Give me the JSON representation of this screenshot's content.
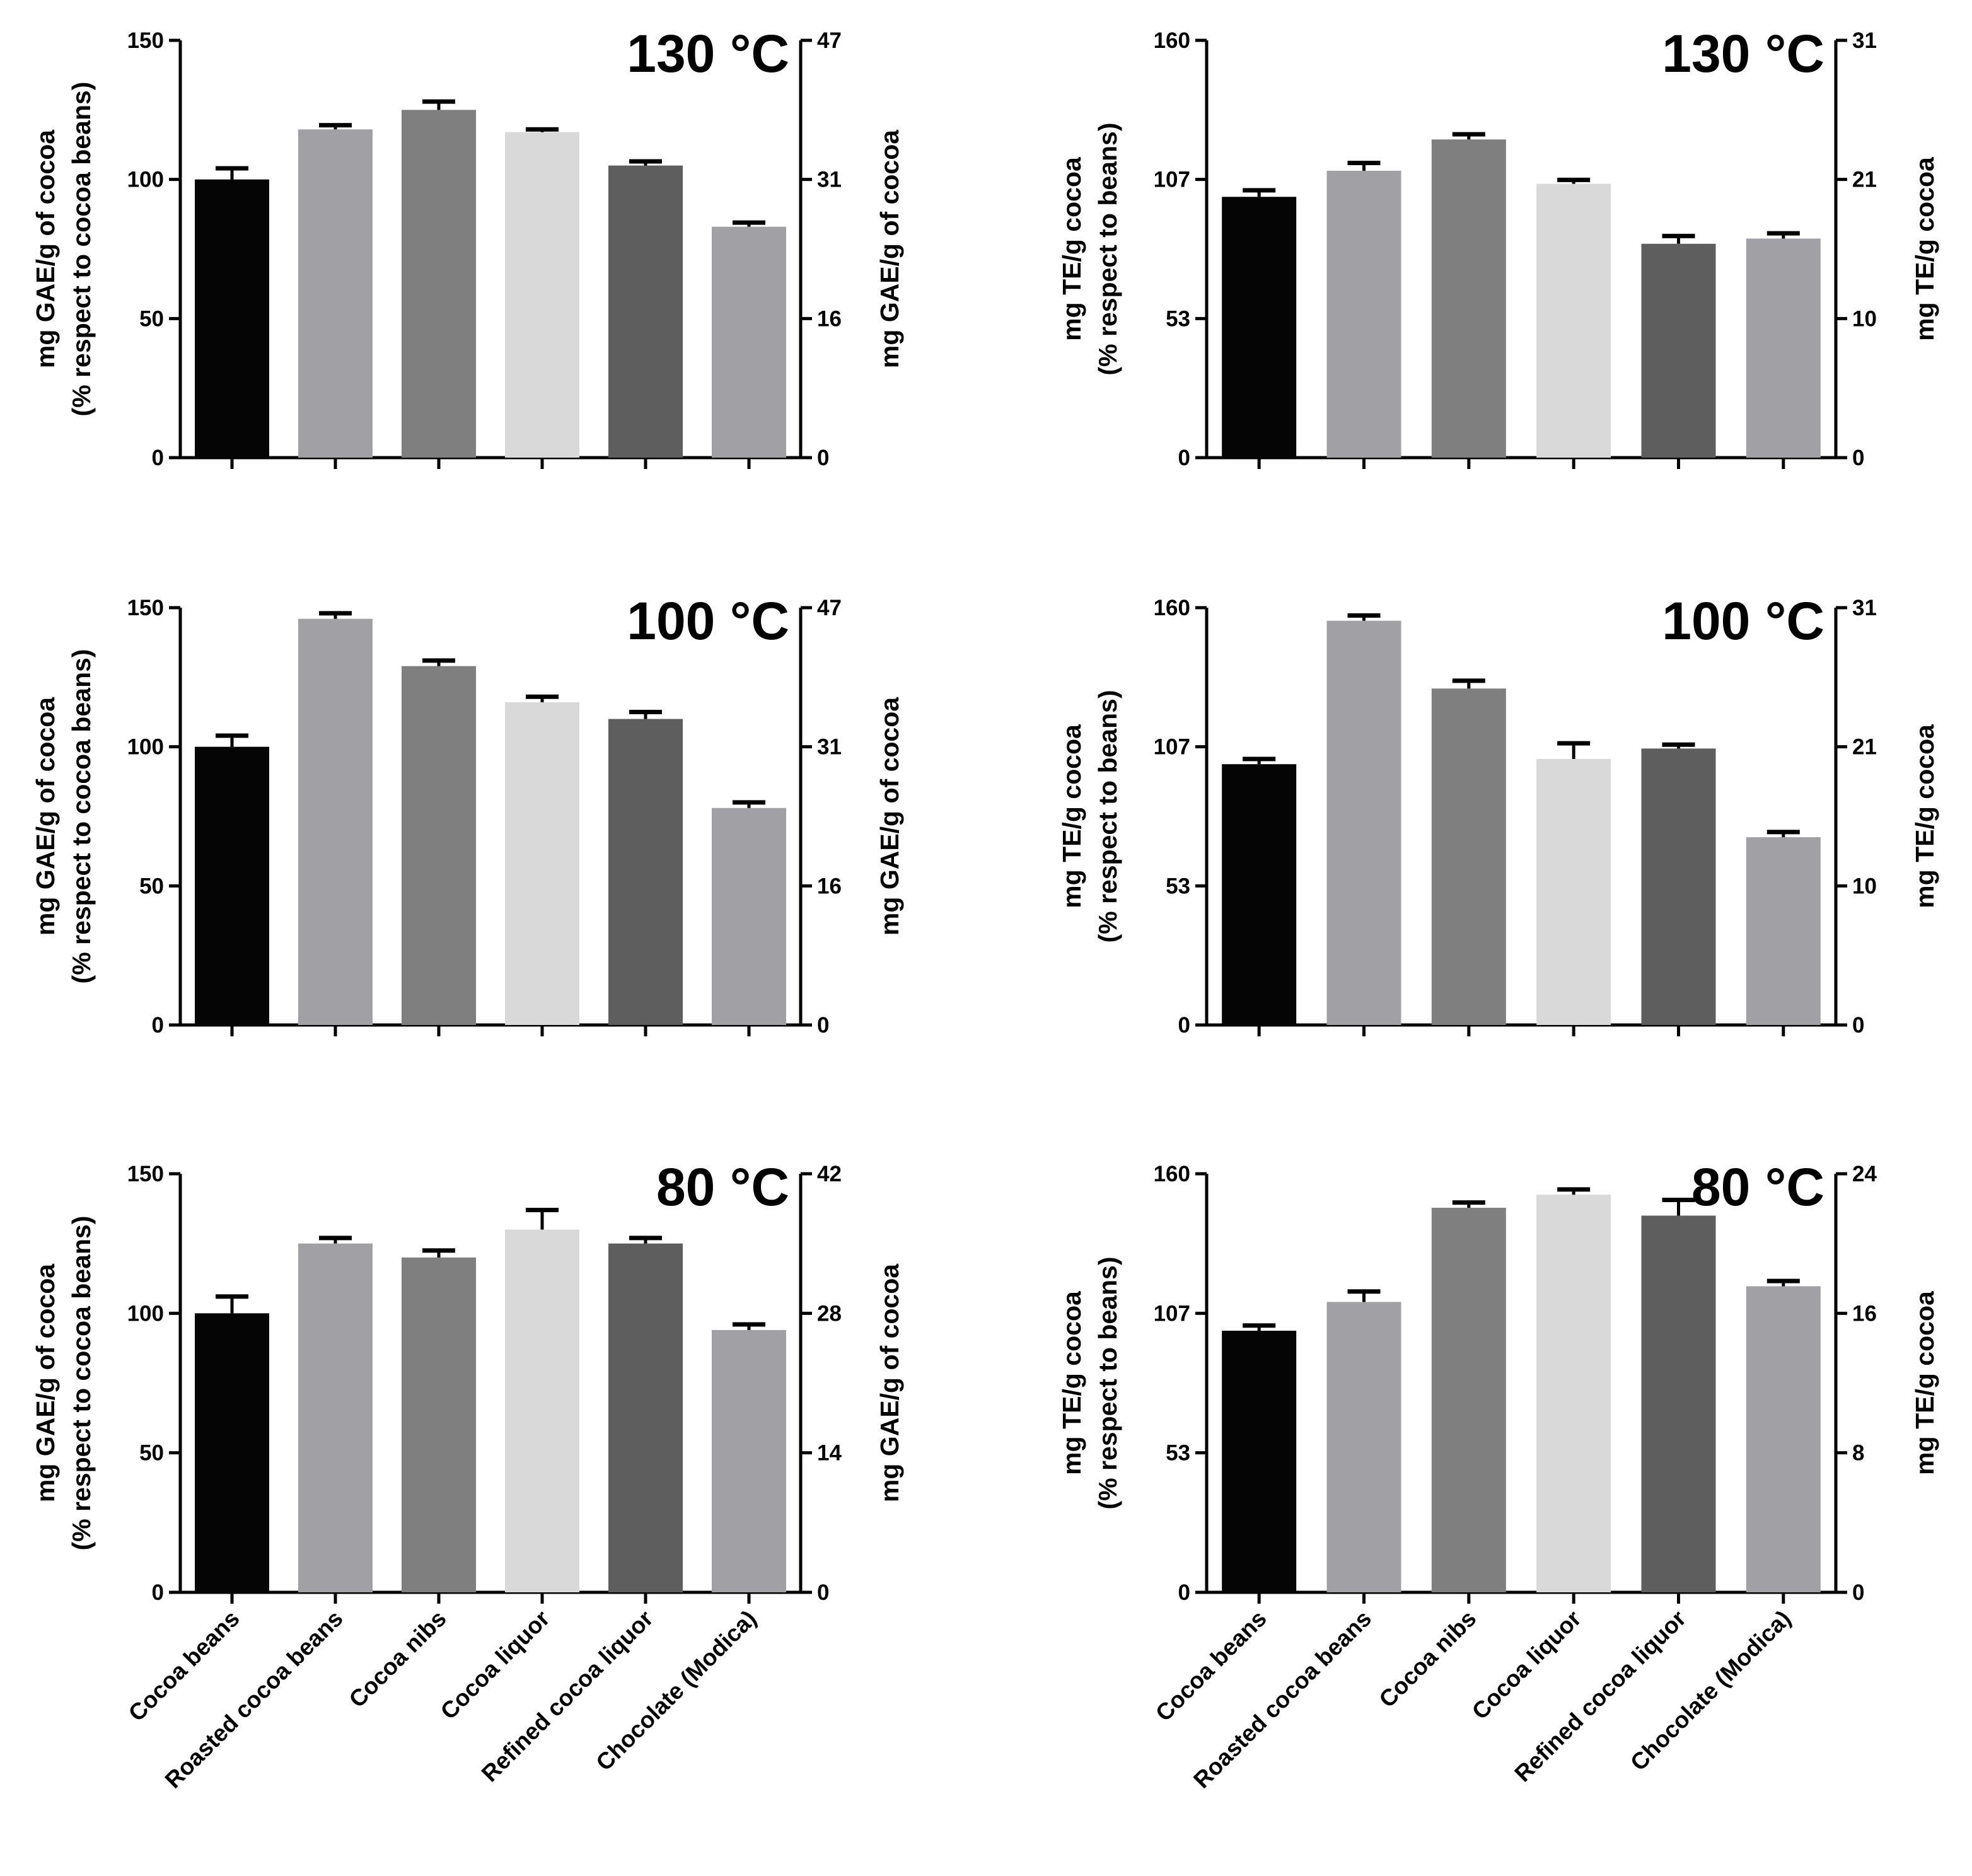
{
  "categories": [
    "Cocoa beans",
    "Roasted cocoa beans",
    "Cocoa nibs",
    "Cocoa liquor",
    "Refined cocoa liquor",
    "Chocolate (Modica)"
  ],
  "bar_colors": [
    "#050505",
    "#a1a0a5",
    "#7f7f7f",
    "#d9d9d9",
    "#5e5e5e",
    "#a1a0a5"
  ],
  "chart_data": [
    {
      "type": "bar",
      "id": "gae-130",
      "temperature": "130 °C",
      "ylabel_left_line1": "mg GAE/g of cocoa",
      "ylabel_left_line2": "(% respect to cocoa beans)",
      "ylabel_right": "mg GAE/g of cocoa",
      "ylim": [
        0,
        150
      ],
      "left_ticks": [
        "0",
        "50",
        "100",
        "150"
      ],
      "right_ticks": [
        "0",
        "16",
        "31",
        "47"
      ],
      "values": [
        100,
        118,
        125,
        117,
        105,
        83
      ],
      "errors": [
        4,
        1.5,
        3,
        1,
        1.5,
        1.5
      ]
    },
    {
      "type": "bar",
      "id": "te-130",
      "temperature": "130 °C",
      "ylabel_left_line1": "mg TE/g cocoa",
      "ylabel_left_line2": "(% respect to beans)",
      "ylabel_right": "mg TE/g cocoa",
      "ylim": [
        0,
        160
      ],
      "left_ticks": [
        "0",
        "53",
        "107",
        "160"
      ],
      "right_ticks": [
        "0",
        "10",
        "21",
        "31"
      ],
      "values": [
        100,
        110,
        122,
        105,
        82,
        84
      ],
      "errors": [
        2.5,
        3,
        2,
        1.5,
        3,
        2
      ]
    },
    {
      "type": "bar",
      "id": "gae-100",
      "temperature": "100 °C",
      "ylabel_left_line1": "mg GAE/g of cocoa",
      "ylabel_left_line2": "(% respect to cocoa beans)",
      "ylabel_right": "mg GAE/g of cocoa",
      "ylim": [
        0,
        150
      ],
      "left_ticks": [
        "0",
        "50",
        "100",
        "150"
      ],
      "right_ticks": [
        "0",
        "16",
        "31",
        "47"
      ],
      "values": [
        100,
        146,
        129,
        116,
        110,
        78
      ],
      "errors": [
        4,
        2,
        2,
        2,
        2.5,
        2
      ]
    },
    {
      "type": "bar",
      "id": "te-100",
      "temperature": "100 °C",
      "ylabel_left_line1": "mg TE/g cocoa",
      "ylabel_left_line2": "(% respect to beans)",
      "ylabel_right": "mg TE/g cocoa",
      "ylim": [
        0,
        160
      ],
      "left_ticks": [
        "0",
        "53",
        "107",
        "160"
      ],
      "right_ticks": [
        "0",
        "10",
        "21",
        "31"
      ],
      "values": [
        100,
        155,
        129,
        102,
        106,
        72
      ],
      "errors": [
        2,
        2,
        3,
        6,
        1.5,
        2
      ]
    },
    {
      "type": "bar",
      "id": "gae-80",
      "temperature": "80 °C",
      "ylabel_left_line1": "mg GAE/g of cocoa",
      "ylabel_left_line2": "(% respect to cocoa beans)",
      "ylabel_right": "mg GAE/g of cocoa",
      "ylim": [
        0,
        150
      ],
      "left_ticks": [
        "0",
        "50",
        "100",
        "150"
      ],
      "right_ticks": [
        "0",
        "14",
        "28",
        "42"
      ],
      "values": [
        100,
        125,
        120,
        130,
        125,
        94
      ],
      "errors": [
        6,
        2,
        2.5,
        7,
        2,
        2
      ]
    },
    {
      "type": "bar",
      "id": "te-80",
      "temperature": "80 °C",
      "ylabel_left_line1": "mg TE/g cocoa",
      "ylabel_left_line2": "(% respect to beans)",
      "ylabel_right": "mg TE/g cocoa",
      "ylim": [
        0,
        160
      ],
      "left_ticks": [
        "0",
        "53",
        "107",
        "160"
      ],
      "right_ticks": [
        "0",
        "8",
        "16",
        "24"
      ],
      "values": [
        100,
        111,
        147,
        152,
        144,
        117
      ],
      "errors": [
        2,
        4,
        2,
        2,
        6,
        2
      ]
    }
  ]
}
